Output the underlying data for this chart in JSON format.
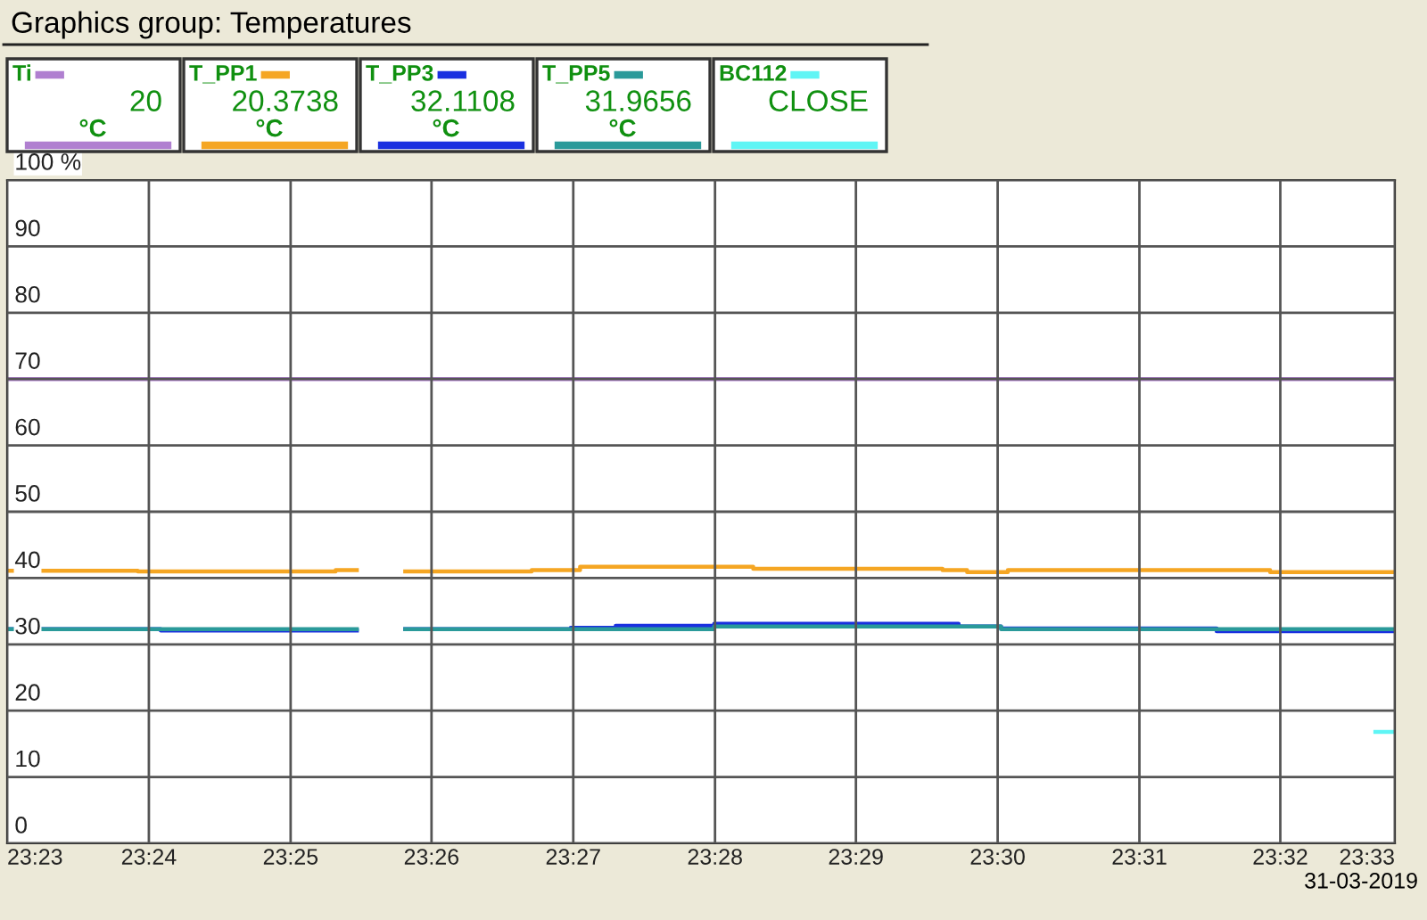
{
  "chart_data": {
    "type": "step",
    "title": "Graphics group: Temperatures",
    "xlim": [
      23.3833,
      23.5468
    ],
    "ylim": [
      0,
      100
    ],
    "xticks": [
      {
        "value": 23.3833,
        "label": "23:23"
      },
      {
        "value": 23.4,
        "label": "23:24"
      },
      {
        "value": 23.4167,
        "label": "23:25"
      },
      {
        "value": 23.4333,
        "label": "23:26"
      },
      {
        "value": 23.45,
        "label": "23:27"
      },
      {
        "value": 23.4667,
        "label": "23:28"
      },
      {
        "value": 23.4833,
        "label": "23:29"
      },
      {
        "value": 23.5,
        "label": "23:30"
      },
      {
        "value": 23.5167,
        "label": "23:31"
      },
      {
        "value": 23.5333,
        "label": "23:32"
      },
      {
        "value": 23.5468,
        "label": "23:33"
      }
    ],
    "yticks": [
      0,
      10,
      20,
      30,
      40,
      50,
      60,
      70,
      80,
      90,
      {
        "value": 100,
        "label": "100 %"
      }
    ],
    "grid": true,
    "legend": "top",
    "line_style": "solid",
    "marker": "none",
    "series": [
      {
        "name": "Ti",
        "color": "#b07fd0",
        "x": [
          23.3833,
          23.5468
        ],
        "values": [
          70,
          70
        ]
      },
      {
        "name": "T_PP1",
        "color": "#f5a623",
        "x": [
          23.3833,
          23.3987,
          23.422,
          23.4245,
          23.4302,
          23.4451,
          23.4508,
          23.4712,
          23.4935,
          23.4964,
          23.5012,
          23.5321,
          23.5468
        ],
        "values": [
          41.1,
          41.0,
          41.2,
          null,
          41.0,
          41.2,
          41.7,
          41.4,
          41.2,
          40.9,
          41.2,
          40.9,
          40.9
        ]
      },
      {
        "name": "T_PP3",
        "color": "#1a30e0",
        "x": [
          23.3833,
          23.4014,
          23.4245,
          23.4302,
          23.4497,
          23.455,
          23.4666,
          23.4954,
          23.5004,
          23.5258,
          23.5468
        ],
        "values": [
          32.3,
          32.1,
          null,
          32.3,
          32.5,
          32.8,
          33.1,
          32.7,
          32.4,
          32.0,
          32.0
        ]
      },
      {
        "name": "T_PP5",
        "color": "#2a9a9a",
        "x": [
          23.3833,
          23.4245,
          23.4302,
          23.4666,
          23.5004,
          23.5468
        ],
        "values": [
          32.3,
          null,
          32.3,
          32.7,
          32.3,
          32.3
        ]
      },
      {
        "name": "BC112",
        "color": "#5ff5f5",
        "x": [
          23.5445,
          23.5468
        ],
        "values": [
          16.8,
          16.8
        ]
      }
    ],
    "annotations": [
      "20\n°C",
      "20.3738\n°C",
      "32.1108\n°C",
      "31.9656\n°C",
      "CLOSE",
      "31-03-2019"
    ]
  }
}
